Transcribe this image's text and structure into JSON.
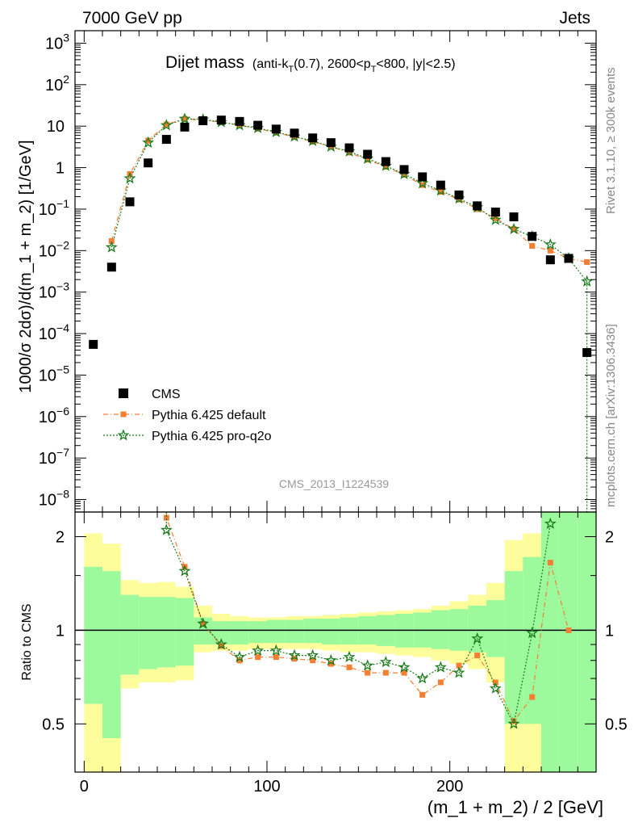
{
  "header": {
    "left": "7000 GeV pp",
    "right": "Jets"
  },
  "title": {
    "main": "Dijet mass",
    "sub_pre": "(anti-k",
    "sub_sub1": "T",
    "sub_mid": "(0.7), 2600<p",
    "sub_sub2": "T",
    "sub_post": "<800, |y|<2.5)"
  },
  "side_labels": {
    "rivet": "Rivet 3.1.10, ≥ 300k events",
    "mcplots": "mcplots.cern.ch [arXiv:1306.3436]"
  },
  "watermark": "CMS_2013_I1224539",
  "axes": {
    "ylabel_main": "1000/σ 2dσ)/d(m_1 + m_2) [1/GeV]",
    "ylabel_ratio": "Ratio to CMS",
    "xlabel": "(m_1 + m_2) / 2 [GeV]",
    "x_ticks": [
      "0",
      "100",
      "200"
    ],
    "y_ticks_main": [
      {
        "base": "10",
        "exp": "3"
      },
      {
        "base": "10",
        "exp": "2"
      },
      {
        "base": "10",
        "exp": ""
      },
      {
        "base": "1",
        "exp": ""
      },
      {
        "base": "10",
        "exp": "−1"
      },
      {
        "base": "10",
        "exp": "−2"
      },
      {
        "base": "10",
        "exp": "−3"
      },
      {
        "base": "10",
        "exp": "−4"
      },
      {
        "base": "10",
        "exp": "−5"
      },
      {
        "base": "10",
        "exp": "−6"
      },
      {
        "base": "10",
        "exp": "−7"
      },
      {
        "base": "10",
        "exp": "−8"
      }
    ],
    "y_ticks_ratio": [
      "2",
      "1",
      "0.5"
    ]
  },
  "legend": [
    {
      "label": "CMS",
      "color": "#000000",
      "marker": "square"
    },
    {
      "label": "Pythia 6.425 default",
      "color": "#f47f33",
      "marker": "square"
    },
    {
      "label": "Pythia 6.425 pro-q2o",
      "color": "#1a7a1a",
      "marker": "star"
    }
  ],
  "chart_data": {
    "type": "scatter",
    "xlim": [
      -5,
      280
    ],
    "ylim_main": [
      5e-09,
      2000
    ],
    "ylog_main": true,
    "ylim_ratio": [
      0.35,
      2.4
    ],
    "ylog_ratio": true,
    "colors": {
      "cms": "#000000",
      "default": "#f47f33",
      "proq2o": "#1a7a1a",
      "band_inner": "#9cf99c",
      "band_outer": "#fdfd9c"
    },
    "series": [
      {
        "name": "CMS",
        "x": [
          5,
          15,
          25,
          35,
          45,
          55,
          65,
          75,
          85,
          95,
          105,
          115,
          125,
          135,
          145,
          155,
          165,
          175,
          185,
          195,
          205,
          215,
          225,
          235,
          245,
          255,
          265,
          275
        ],
        "y": [
          5.5e-05,
          0.004,
          0.15,
          1.3,
          4.8,
          9.5,
          13.5,
          14,
          13,
          10.5,
          8.5,
          6.8,
          5.2,
          4,
          3,
          2.1,
          1.4,
          0.9,
          0.6,
          0.38,
          0.22,
          0.12,
          0.085,
          0.065,
          0.022,
          0.006,
          0.0065,
          3.5e-05
        ]
      },
      {
        "name": "Pythia 6.425 default",
        "x": [
          15,
          25,
          35,
          45,
          55,
          65,
          75,
          85,
          95,
          105,
          115,
          125,
          135,
          145,
          155,
          165,
          175,
          185,
          195,
          205,
          215,
          225,
          235,
          245,
          255,
          265,
          275
        ],
        "y": [
          0.017,
          0.7,
          4.5,
          11,
          15,
          14,
          12.5,
          10.5,
          8.7,
          7,
          5.5,
          4.2,
          3.2,
          2.3,
          1.55,
          1.05,
          0.67,
          0.38,
          0.26,
          0.17,
          0.1,
          0.06,
          0.033,
          0.013,
          0.01,
          0.0065,
          0.0053
        ]
      },
      {
        "name": "Pythia 6.425 pro-q2o",
        "x": [
          15,
          25,
          35,
          45,
          55,
          65,
          75,
          85,
          95,
          105,
          115,
          125,
          135,
          145,
          155,
          165,
          175,
          185,
          195,
          205,
          215,
          225,
          235,
          245,
          255,
          265,
          275
        ],
        "y": [
          0.012,
          0.55,
          4,
          10.5,
          15,
          14.5,
          12.5,
          10.5,
          9,
          7.2,
          5.6,
          4.4,
          3.2,
          2.45,
          1.65,
          1.1,
          0.7,
          0.42,
          0.28,
          0.18,
          0.11,
          0.055,
          0.033,
          0.022,
          0.014,
          0.0065,
          0.0018
        ]
      }
    ],
    "ratio": {
      "default": {
        "x": [
          45,
          55,
          65,
          75,
          85,
          95,
          105,
          115,
          125,
          135,
          145,
          155,
          165,
          175,
          185,
          195,
          205,
          215,
          225,
          235,
          245,
          255,
          265
        ],
        "y": [
          2.3,
          1.6,
          1.05,
          0.89,
          0.8,
          0.82,
          0.82,
          0.81,
          0.8,
          0.78,
          0.76,
          0.73,
          0.73,
          0.73,
          0.62,
          0.68,
          0.77,
          0.83,
          0.68,
          0.51,
          0.61,
          1.65,
          1.0
        ]
      },
      "proq2o": {
        "x": [
          45,
          55,
          65,
          75,
          85,
          95,
          105,
          115,
          125,
          135,
          145,
          155,
          165,
          175,
          185,
          195,
          205,
          215,
          225,
          235,
          245,
          255
        ],
        "y": [
          2.1,
          1.55,
          1.05,
          0.9,
          0.82,
          0.86,
          0.86,
          0.83,
          0.83,
          0.8,
          0.82,
          0.77,
          0.79,
          0.76,
          0.7,
          0.76,
          0.73,
          0.94,
          0.65,
          0.5,
          0.98,
          2.2
        ]
      },
      "bands": [
        {
          "x0": 0,
          "x1": 10,
          "inner": [
            0.58,
            1.6
          ],
          "outer": [
            0.35,
            2.05
          ]
        },
        {
          "x0": 10,
          "x1": 20,
          "inner": [
            0.45,
            1.55
          ],
          "outer": [
            0.35,
            1.9
          ]
        },
        {
          "x0": 20,
          "x1": 30,
          "inner": [
            0.72,
            1.3
          ],
          "outer": [
            0.65,
            1.45
          ]
        },
        {
          "x0": 30,
          "x1": 40,
          "inner": [
            0.75,
            1.28
          ],
          "outer": [
            0.68,
            1.42
          ]
        },
        {
          "x0": 40,
          "x1": 50,
          "inner": [
            0.76,
            1.28
          ],
          "outer": [
            0.68,
            1.43
          ]
        },
        {
          "x0": 50,
          "x1": 60,
          "inner": [
            0.77,
            1.27
          ],
          "outer": [
            0.69,
            1.38
          ]
        },
        {
          "x0": 60,
          "x1": 70,
          "inner": [
            0.9,
            1.1
          ],
          "outer": [
            0.85,
            1.2
          ]
        },
        {
          "x0": 70,
          "x1": 80,
          "inner": [
            0.9,
            1.07
          ],
          "outer": [
            0.86,
            1.13
          ]
        },
        {
          "x0": 80,
          "x1": 90,
          "inner": [
            0.9,
            1.07
          ],
          "outer": [
            0.86,
            1.11
          ]
        },
        {
          "x0": 90,
          "x1": 100,
          "inner": [
            0.91,
            1.07
          ],
          "outer": [
            0.87,
            1.1
          ]
        },
        {
          "x0": 100,
          "x1": 110,
          "inner": [
            0.91,
            1.08
          ],
          "outer": [
            0.87,
            1.1
          ]
        },
        {
          "x0": 110,
          "x1": 120,
          "inner": [
            0.91,
            1.08
          ],
          "outer": [
            0.87,
            1.11
          ]
        },
        {
          "x0": 120,
          "x1": 130,
          "inner": [
            0.91,
            1.09
          ],
          "outer": [
            0.87,
            1.11
          ]
        },
        {
          "x0": 130,
          "x1": 140,
          "inner": [
            0.9,
            1.09
          ],
          "outer": [
            0.86,
            1.12
          ]
        },
        {
          "x0": 140,
          "x1": 150,
          "inner": [
            0.9,
            1.1
          ],
          "outer": [
            0.85,
            1.13
          ]
        },
        {
          "x0": 150,
          "x1": 160,
          "inner": [
            0.9,
            1.11
          ],
          "outer": [
            0.85,
            1.14
          ]
        },
        {
          "x0": 160,
          "x1": 170,
          "inner": [
            0.89,
            1.12
          ],
          "outer": [
            0.84,
            1.15
          ]
        },
        {
          "x0": 170,
          "x1": 180,
          "inner": [
            0.88,
            1.13
          ],
          "outer": [
            0.83,
            1.16
          ]
        },
        {
          "x0": 180,
          "x1": 190,
          "inner": [
            0.88,
            1.14
          ],
          "outer": [
            0.82,
            1.17
          ]
        },
        {
          "x0": 190,
          "x1": 200,
          "inner": [
            0.87,
            1.16
          ],
          "outer": [
            0.8,
            1.2
          ]
        },
        {
          "x0": 200,
          "x1": 210,
          "inner": [
            0.86,
            1.17
          ],
          "outer": [
            0.78,
            1.24
          ]
        },
        {
          "x0": 210,
          "x1": 220,
          "inner": [
            0.85,
            1.2
          ],
          "outer": [
            0.75,
            1.3
          ]
        },
        {
          "x0": 220,
          "x1": 230,
          "inner": [
            0.82,
            1.25
          ],
          "outer": [
            0.68,
            1.42
          ]
        },
        {
          "x0": 230,
          "x1": 240,
          "inner": [
            0.5,
            1.55
          ],
          "outer": [
            0.35,
            1.95
          ]
        },
        {
          "x0": 240,
          "x1": 250,
          "inner": [
            0.5,
            1.72
          ],
          "outer": [
            0.35,
            2.05
          ]
        },
        {
          "x0": 250,
          "x1": 260,
          "inner": [
            0.35,
            2.4
          ],
          "outer": [
            0.35,
            2.4
          ]
        },
        {
          "x0": 260,
          "x1": 270,
          "inner": [
            0.35,
            2.4
          ],
          "outer": [
            0.35,
            2.4
          ]
        },
        {
          "x0": 270,
          "x1": 280,
          "inner": [
            0.35,
            2.4
          ],
          "outer": [
            0.35,
            2.4
          ]
        }
      ]
    }
  }
}
